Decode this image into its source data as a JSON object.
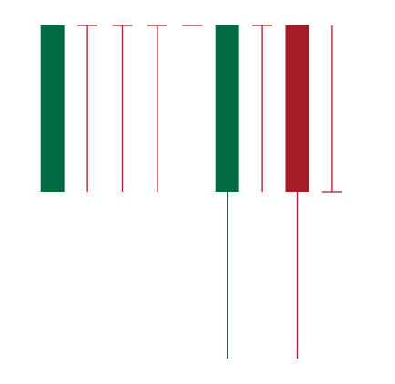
{
  "chart_data": {
    "type": "candlestick",
    "title": "",
    "xlabel": "",
    "ylabel": "",
    "axes_visible": false,
    "grid": false,
    "legend": "none",
    "ylim": [
      0,
      100
    ],
    "up_color": "#006a42",
    "down_color": "#a31c26",
    "candles": [
      {
        "open": 0,
        "high": 100,
        "low": 0,
        "close": 100
      },
      {
        "open": 100,
        "high": 100,
        "low": 0,
        "close": 100
      },
      {
        "open": 100,
        "high": 100,
        "low": 0,
        "close": 100
      },
      {
        "open": 100,
        "high": 100,
        "low": 0,
        "close": 100
      },
      {
        "open": 100,
        "high": 100,
        "low": 100,
        "close": 100
      },
      {
        "open": 0,
        "high": 100,
        "low": -100,
        "close": 100
      },
      {
        "open": 100,
        "high": 100,
        "low": 0,
        "close": 100
      },
      {
        "open": 100,
        "high": 100,
        "low": -100,
        "close": 0
      },
      {
        "open": 0,
        "high": 100,
        "low": 0,
        "close": 0
      }
    ]
  }
}
